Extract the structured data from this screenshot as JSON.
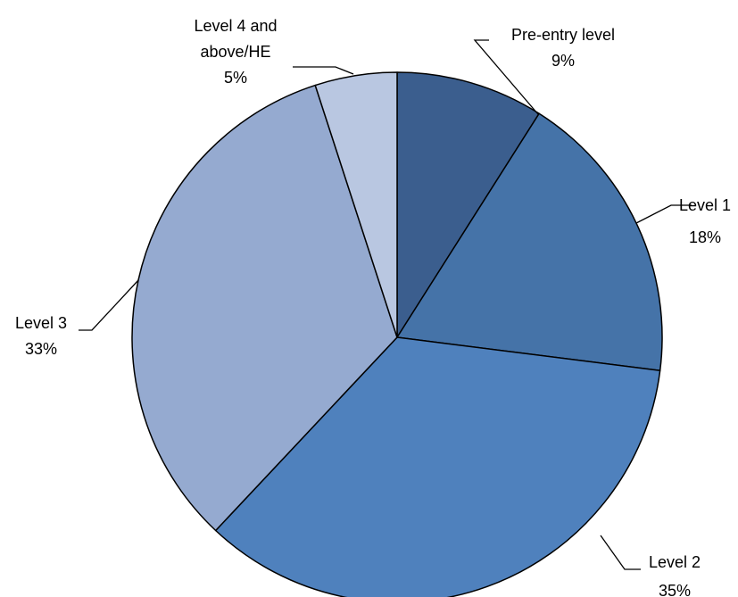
{
  "chart_data": {
    "type": "pie",
    "title": "",
    "start_angle_deg": 0,
    "direction": "clockwise",
    "slices": [
      {
        "label_lines": [
          "Pre-entry level"
        ],
        "value_label": "9%",
        "value": 9,
        "color": "#3b5e8e"
      },
      {
        "label_lines": [
          "Level 1"
        ],
        "value_label": "18%",
        "value": 18,
        "color": "#4573a8"
      },
      {
        "label_lines": [
          "Level 2"
        ],
        "value_label": "35%",
        "value": 35,
        "color": "#4f81bd"
      },
      {
        "label_lines": [
          "Level 3"
        ],
        "value_label": "33%",
        "value": 33,
        "color": "#95aad0"
      },
      {
        "label_lines": [
          "Level 4 and",
          "above/HE"
        ],
        "value_label": "5%",
        "value": 5,
        "color": "#b9c7e1"
      }
    ],
    "border_color": "#000000",
    "legend": "none"
  }
}
